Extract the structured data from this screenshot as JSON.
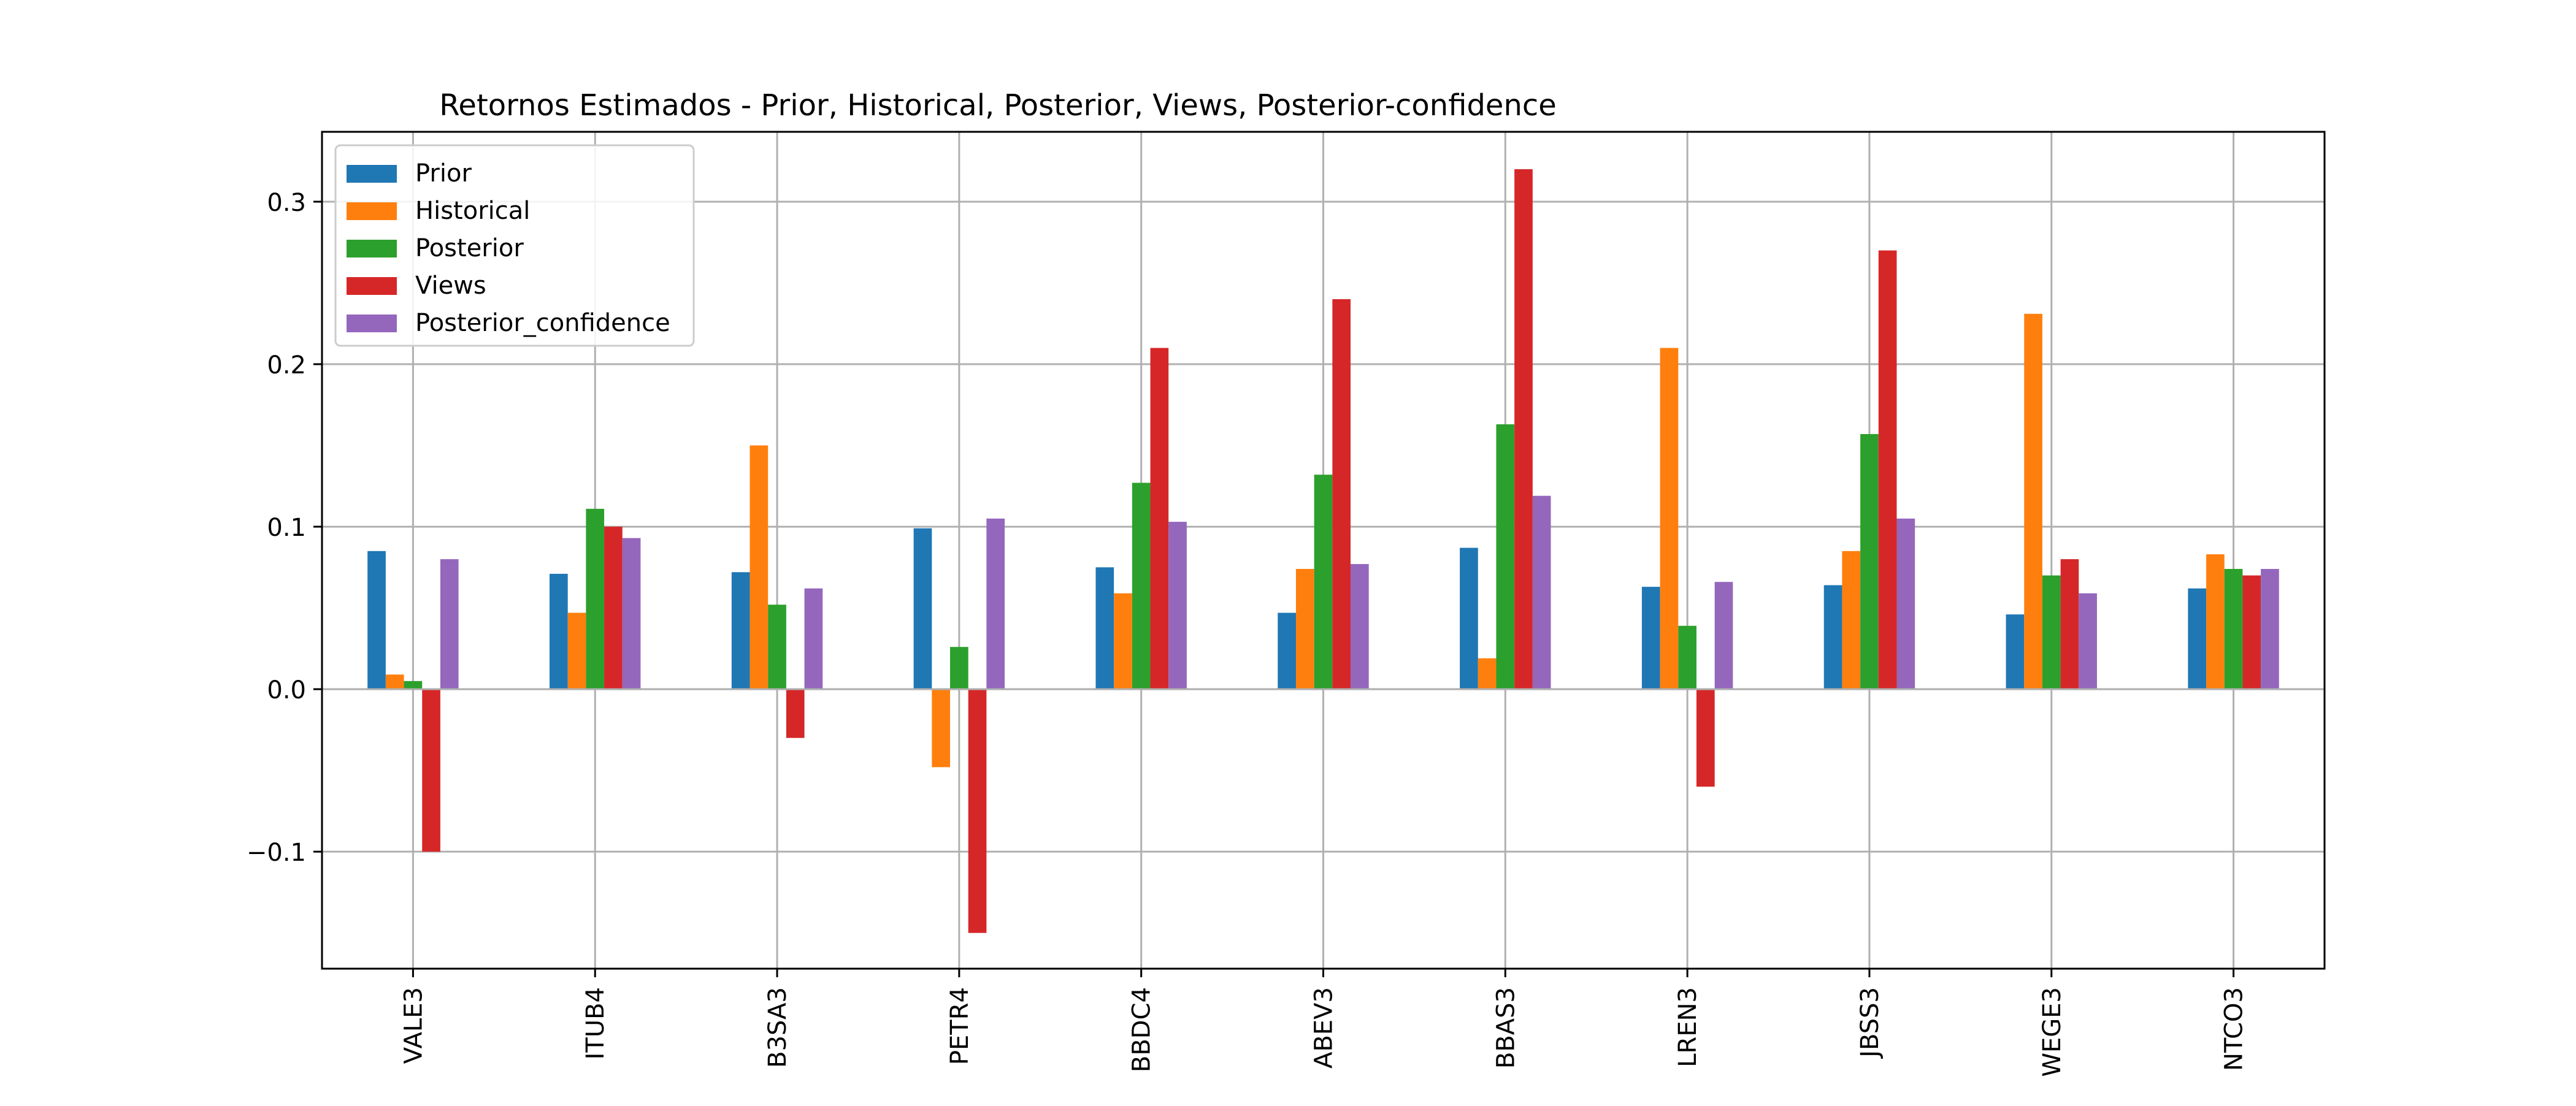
{
  "chart_data": {
    "type": "bar",
    "title": "Retornos Estimados - Prior, Historical, Posterior, Views, Posterior-confidence",
    "xlabel": "",
    "ylabel": "",
    "categories": [
      "VALE3",
      "ITUB4",
      "B3SA3",
      "PETR4",
      "BBDC4",
      "ABEV3",
      "BBAS3",
      "LREN3",
      "JBSS3",
      "WEGE3",
      "NTCO3"
    ],
    "series": [
      {
        "name": "Prior",
        "color": "#1f77b4",
        "values": [
          0.085,
          0.071,
          0.072,
          0.099,
          0.075,
          0.047,
          0.087,
          0.063,
          0.064,
          0.046,
          0.062
        ]
      },
      {
        "name": "Historical",
        "color": "#ff7f0e",
        "values": [
          0.009,
          0.047,
          0.15,
          -0.048,
          0.059,
          0.074,
          0.019,
          0.21,
          0.085,
          0.231,
          0.083
        ]
      },
      {
        "name": "Posterior",
        "color": "#2ca02c",
        "values": [
          0.005,
          0.111,
          0.052,
          0.026,
          0.127,
          0.132,
          0.163,
          0.039,
          0.157,
          0.07,
          0.074
        ]
      },
      {
        "name": "Views",
        "color": "#d62728",
        "values": [
          -0.1,
          0.1,
          -0.03,
          -0.15,
          0.21,
          0.24,
          0.32,
          -0.06,
          0.27,
          0.08,
          0.07
        ]
      },
      {
        "name": "Posterior_confidence",
        "color": "#9467bd",
        "values": [
          0.08,
          0.093,
          0.062,
          0.105,
          0.103,
          0.077,
          0.119,
          0.066,
          0.105,
          0.059,
          0.074
        ]
      }
    ],
    "ylim": [
      -0.172,
      0.343
    ],
    "yticks": [
      -0.1,
      0.0,
      0.1,
      0.2,
      0.3
    ],
    "ytick_labels": [
      "−0.1",
      "0.0",
      "0.1",
      "0.2",
      "0.3"
    ],
    "grid": true,
    "legend_position": "top-left"
  }
}
